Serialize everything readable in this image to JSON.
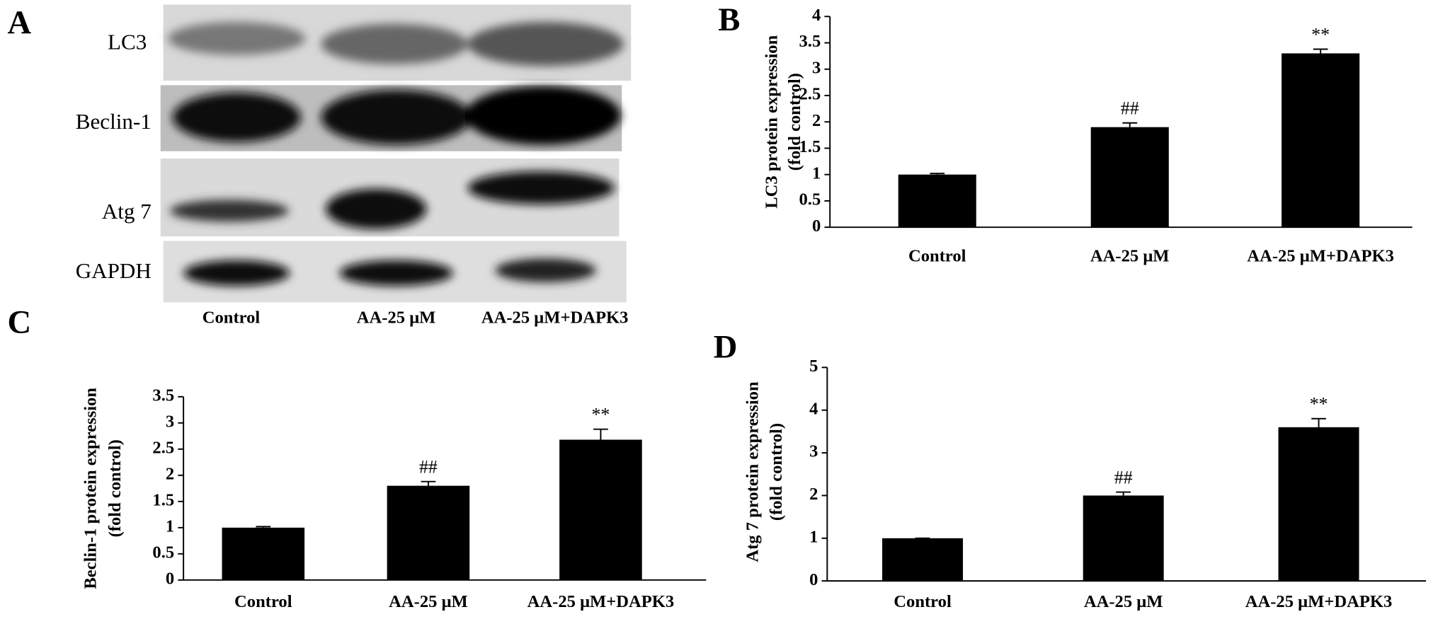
{
  "blot": {
    "label": "A",
    "rows": [
      "LC3",
      "Beclin-1",
      "Atg 7",
      "GAPDH"
    ],
    "lanes": [
      "Control",
      "AA-25 μM",
      "AA-25 μM+DAPK3"
    ]
  },
  "chart_data": [
    {
      "type": "bar",
      "panel": "B",
      "ylabel": [
        "LC3 protein expression",
        "(fold control)"
      ],
      "categories": [
        "Control",
        "AA-25 μM",
        "AA-25 μM+DAPK3"
      ],
      "values": [
        1,
        1.9,
        3.3
      ],
      "errors": [
        0.02,
        0.08,
        0.08
      ],
      "annotations": [
        null,
        "##",
        "**"
      ],
      "color": "#000000",
      "ylim": [
        0,
        4
      ],
      "yticks": [
        0,
        0.5,
        1,
        1.5,
        2,
        2.5,
        3,
        3.5,
        4
      ]
    },
    {
      "type": "bar",
      "panel": "C",
      "ylabel": [
        "Beclin-1 protein expression",
        "(fold control)"
      ],
      "categories": [
        "Control",
        "AA-25 μM",
        "AA-25 μM+DAPK3"
      ],
      "values": [
        1,
        1.8,
        2.68
      ],
      "errors": [
        0.02,
        0.08,
        0.2
      ],
      "annotations": [
        null,
        "##",
        "**"
      ],
      "color": "#000000",
      "ylim": [
        0,
        3.5
      ],
      "yticks": [
        0,
        0.5,
        1,
        1.5,
        2,
        2.5,
        3,
        3.5
      ]
    },
    {
      "type": "bar",
      "panel": "D",
      "ylabel": [
        "Atg 7 protein expression",
        "(fold control)"
      ],
      "categories": [
        "Control",
        "AA-25 μM",
        "AA-25 μM+DAPK3"
      ],
      "values": [
        1,
        2,
        3.6
      ],
      "errors": [
        0,
        0.08,
        0.2
      ],
      "annotations": [
        null,
        "##",
        "**"
      ],
      "color": "#000000",
      "ylim": [
        0,
        5
      ],
      "yticks": [
        0,
        1,
        2,
        3,
        4,
        5
      ]
    }
  ]
}
